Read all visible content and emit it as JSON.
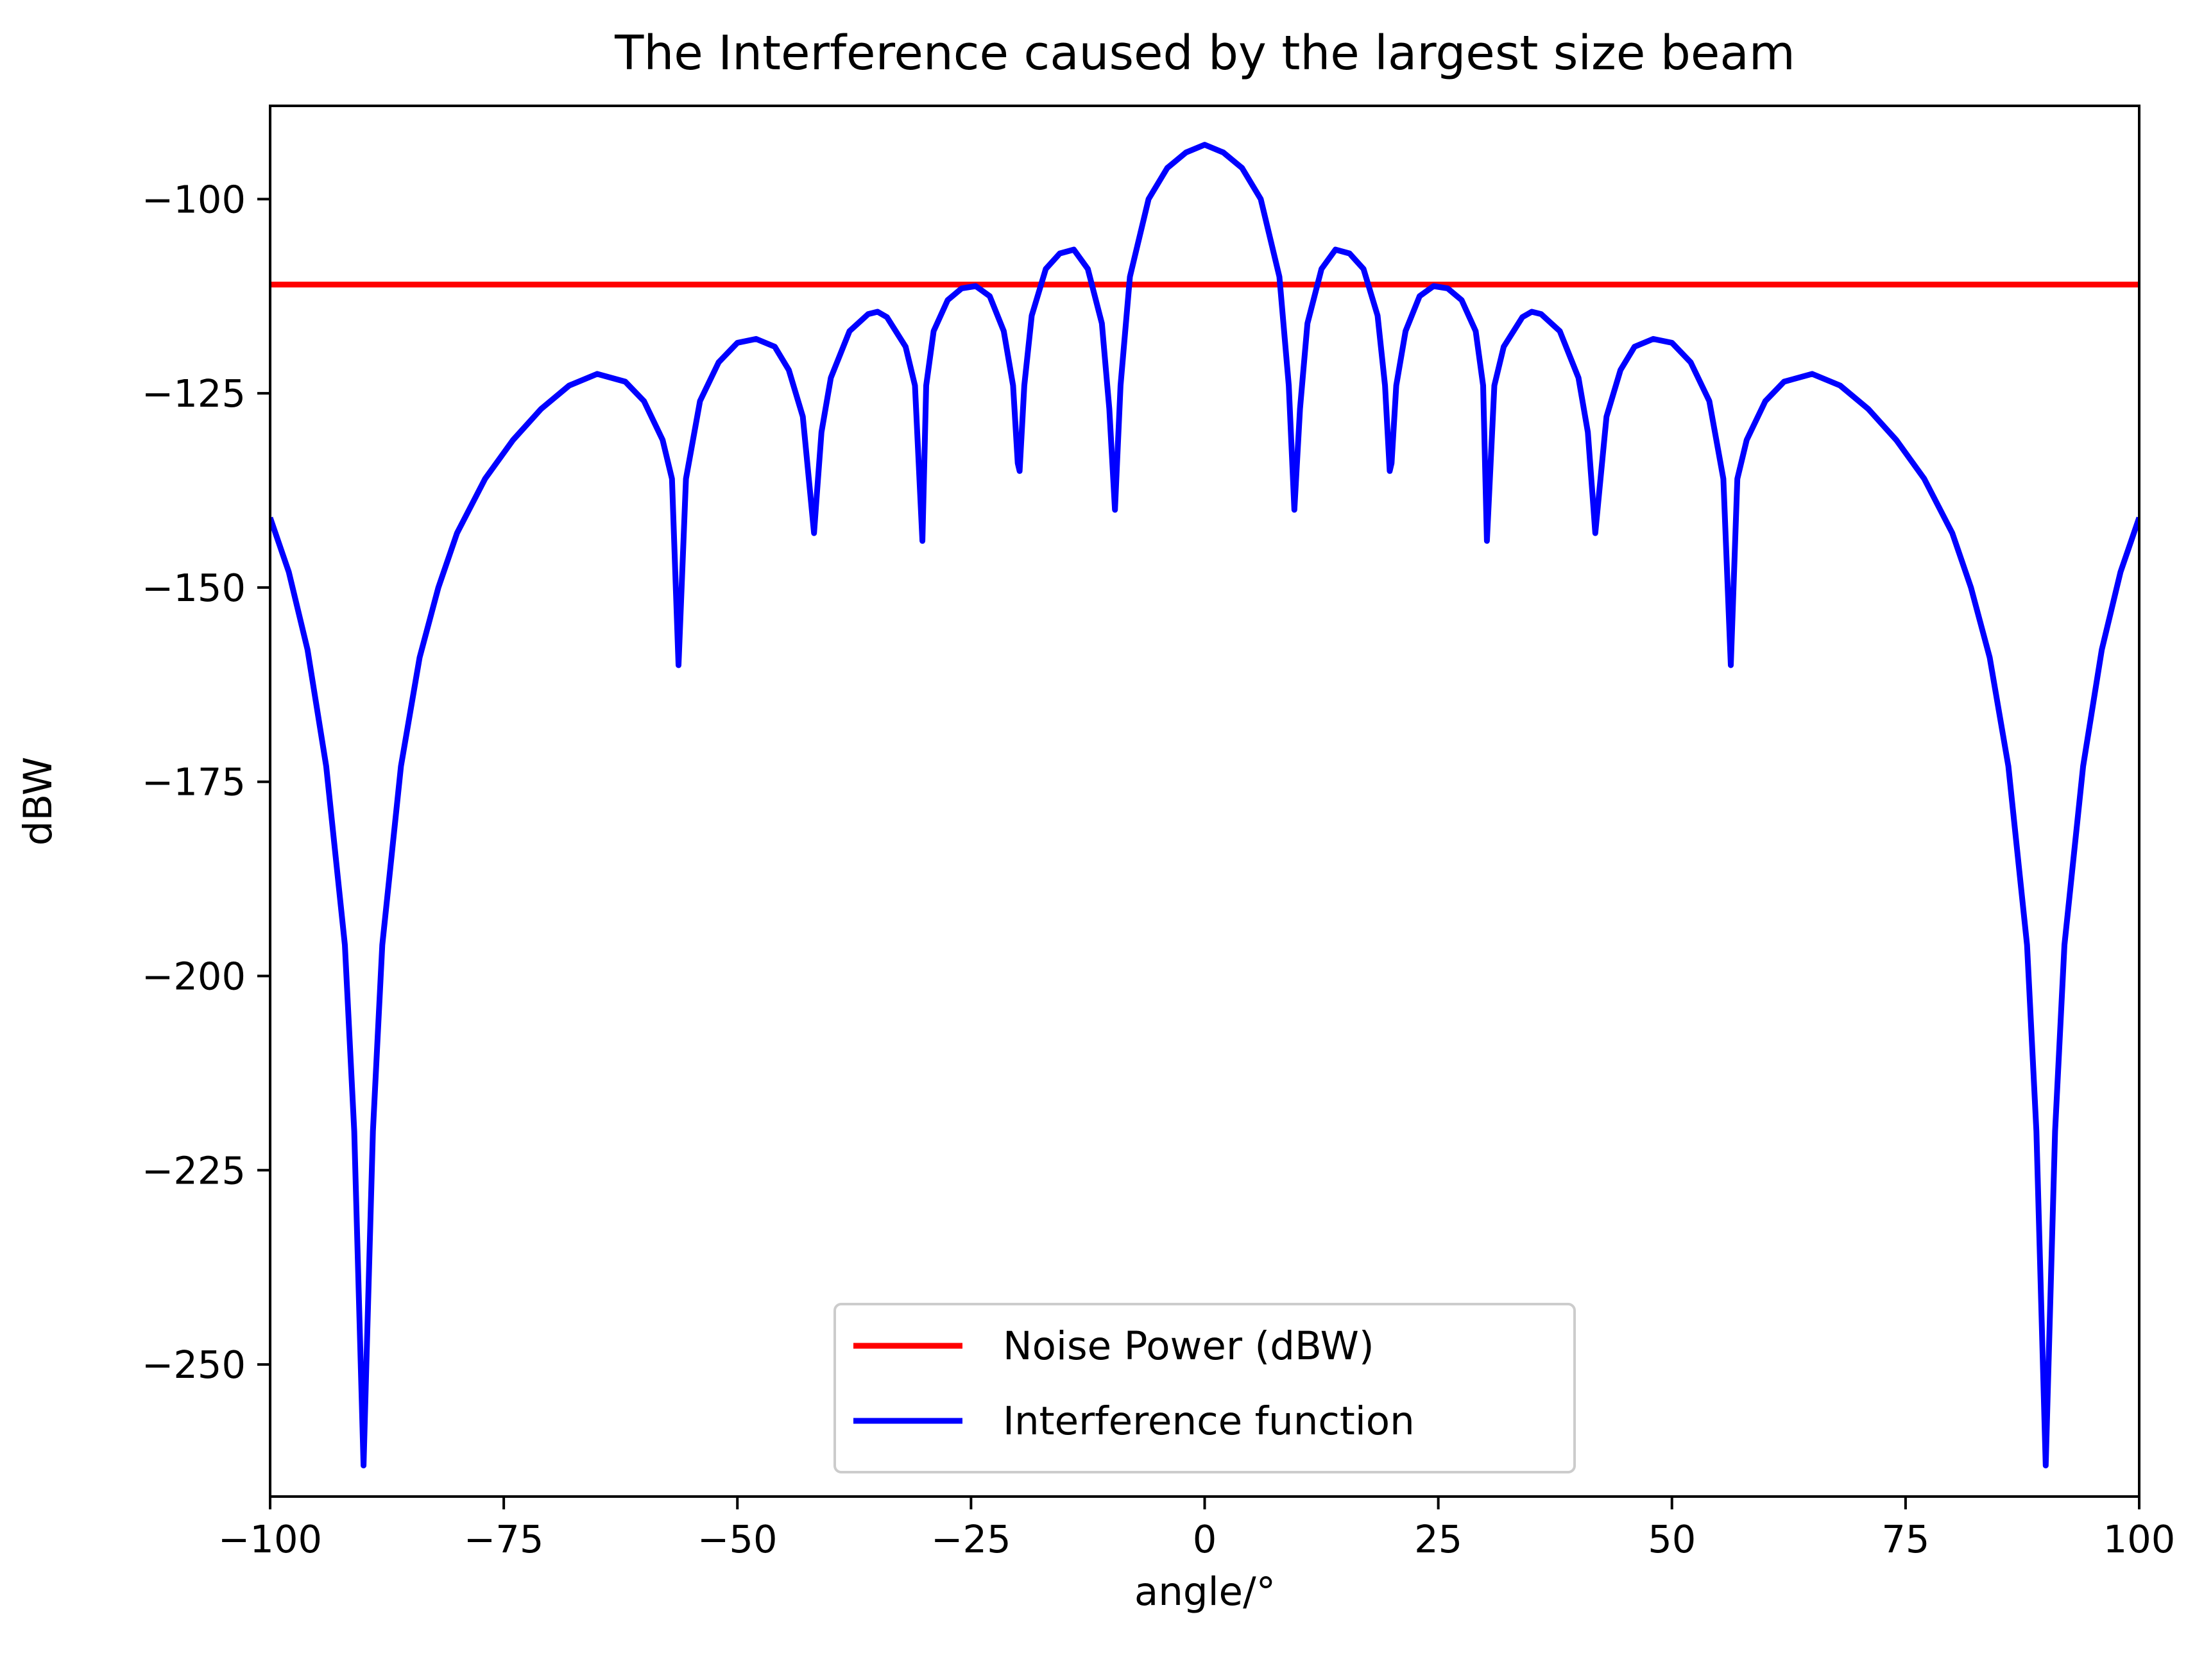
{
  "chart_data": {
    "type": "line",
    "title": "The Interference caused by the largest size beam",
    "xlabel": "angle/°",
    "ylabel": "dBW",
    "xlim": [
      -100,
      100
    ],
    "ylim": [
      -267,
      -88
    ],
    "x_ticks": [
      -100,
      -75,
      -50,
      -25,
      0,
      25,
      50,
      75,
      100
    ],
    "x_tick_labels": [
      "−100",
      "−75",
      "−50",
      "−25",
      "0",
      "25",
      "50",
      "75",
      "100"
    ],
    "y_ticks": [
      -100,
      -125,
      -150,
      -175,
      -200,
      -225,
      -250
    ],
    "y_tick_labels": [
      "−100",
      "−125",
      "−150",
      "−175",
      "−200",
      "−225",
      "−250"
    ],
    "grid": false,
    "legend_position": "bottom-center",
    "series": [
      {
        "name": "Noise Power (dBW)",
        "color": "#ff0000",
        "x": [
          -100,
          100
        ],
        "y": [
          -111,
          -111
        ]
      },
      {
        "name": "Interference function",
        "color": "#0000ff",
        "x": [
          -100,
          -98,
          -96,
          -94,
          -92,
          -91,
          -90,
          -89,
          -88,
          -86,
          -84,
          -82,
          -80,
          -77,
          -74,
          -71,
          -68,
          -65,
          -62,
          -60,
          -58,
          -57,
          -56.3,
          -55.5,
          -54,
          -52,
          -50,
          -48,
          -46,
          -44.5,
          -43,
          -42.2,
          -41.8,
          -41.5,
          -41,
          -40,
          -38,
          -36,
          -35,
          -34,
          -32,
          -31,
          -30.2,
          -29.8,
          -29,
          -27.5,
          -26,
          -24.5,
          -23,
          -21.5,
          -20.5,
          -20,
          -19.8,
          -19.3,
          -18.5,
          -17,
          -15.5,
          -14,
          -12.5,
          -11,
          -10.2,
          -9.6,
          -9,
          -8,
          -6,
          -4,
          -2,
          0,
          2,
          4,
          6,
          8,
          9,
          9.6,
          10.2,
          11,
          12.5,
          14,
          15.5,
          17,
          18.5,
          19.3,
          19.8,
          20,
          20.5,
          21.5,
          23,
          24.5,
          26,
          27.5,
          29,
          29.8,
          30.2,
          31,
          32,
          34,
          35,
          36,
          38,
          40,
          41,
          41.5,
          41.8,
          42.2,
          43,
          44.5,
          46,
          48,
          50,
          52,
          54,
          55.5,
          56.3,
          57,
          58,
          60,
          62,
          65,
          68,
          71,
          74,
          77,
          80,
          82,
          84,
          86,
          88,
          89,
          90,
          91,
          92,
          94,
          96,
          98,
          100
        ],
        "y": [
          -141,
          -148,
          -158,
          -173,
          -196,
          -220,
          -263,
          -220,
          -196,
          -173,
          -159,
          -150,
          -143,
          -136,
          -131,
          -127,
          -124,
          -122.5,
          -123.5,
          -126,
          -131,
          -136,
          -160,
          -136,
          -126,
          -121,
          -118.5,
          -118,
          -119,
          -122,
          -128,
          -138,
          -143,
          -138,
          -130,
          -123,
          -117,
          -114.8,
          -114.5,
          -115.2,
          -119,
          -124,
          -144,
          -124,
          -117,
          -113,
          -111.5,
          -111.2,
          -112.5,
          -117,
          -124,
          -134,
          -135,
          -124,
          -115,
          -109,
          -107,
          -106.5,
          -109,
          -116,
          -127,
          -140,
          -124,
          -110,
          -100,
          -96,
          -94,
          -93,
          -94,
          -96,
          -100,
          -110,
          -124,
          -140,
          -127,
          -116,
          -109,
          -106.5,
          -107,
          -109,
          -115,
          -124,
          -135,
          -134,
          -124,
          -117,
          -112.5,
          -111.2,
          -111.5,
          -113,
          -117,
          -124,
          -144,
          -124,
          -119,
          -115.2,
          -114.5,
          -114.8,
          -117,
          -123,
          -130,
          -138,
          -143,
          -138,
          -128,
          -122,
          -119,
          -118,
          -118.5,
          -121,
          -126,
          -136,
          -160,
          -136,
          -131,
          -126,
          -123.5,
          -122.5,
          -124,
          -127,
          -131,
          -136,
          -143,
          -150,
          -159,
          -173,
          -196,
          -220,
          -263,
          -220,
          -196,
          -173,
          -158,
          -148,
          -141
        ]
      }
    ]
  }
}
